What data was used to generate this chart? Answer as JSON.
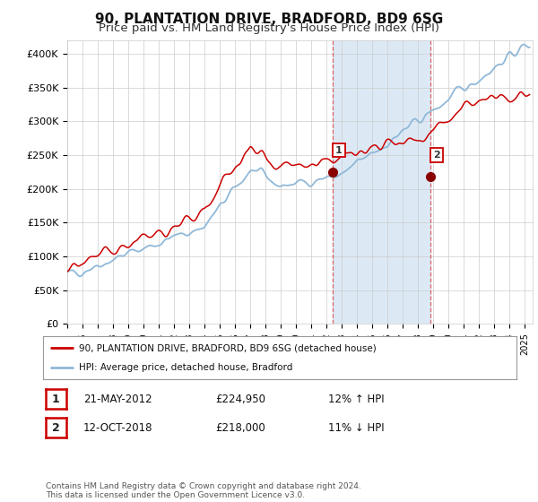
{
  "title": "90, PLANTATION DRIVE, BRADFORD, BD9 6SG",
  "subtitle": "Price paid vs. HM Land Registry's House Price Index (HPI)",
  "ylabel_ticks": [
    "£0",
    "£50K",
    "£100K",
    "£150K",
    "£200K",
    "£250K",
    "£300K",
    "£350K",
    "£400K"
  ],
  "ytick_values": [
    0,
    50000,
    100000,
    150000,
    200000,
    250000,
    300000,
    350000,
    400000
  ],
  "ylim": [
    0,
    420000
  ],
  "xlim_start": 1995.0,
  "xlim_end": 2025.5,
  "marker1_x": 2012.38,
  "marker1_y": 224950,
  "marker2_x": 2018.78,
  "marker2_y": 218000,
  "marker1_label": "1",
  "marker2_label": "2",
  "shade_x1": 2012.38,
  "shade_x2": 2018.78,
  "legend_line1": "90, PLANTATION DRIVE, BRADFORD, BD9 6SG (detached house)",
  "legend_line2": "HPI: Average price, detached house, Bradford",
  "table_row1_num": "1",
  "table_row1_date": "21-MAY-2012",
  "table_row1_price": "£224,950",
  "table_row1_hpi": "12% ↑ HPI",
  "table_row2_num": "2",
  "table_row2_date": "12-OCT-2018",
  "table_row2_price": "£218,000",
  "table_row2_hpi": "11% ↓ HPI",
  "footnote": "Contains HM Land Registry data © Crown copyright and database right 2024.\nThis data is licensed under the Open Government Licence v3.0.",
  "line_color_red": "#cc0000",
  "line_color_blue": "#90b8d8",
  "shade_color": "#dce9f5",
  "grid_color": "#cccccc",
  "bg_color": "#ffffff",
  "title_fontsize": 11,
  "subtitle_fontsize": 9.5
}
